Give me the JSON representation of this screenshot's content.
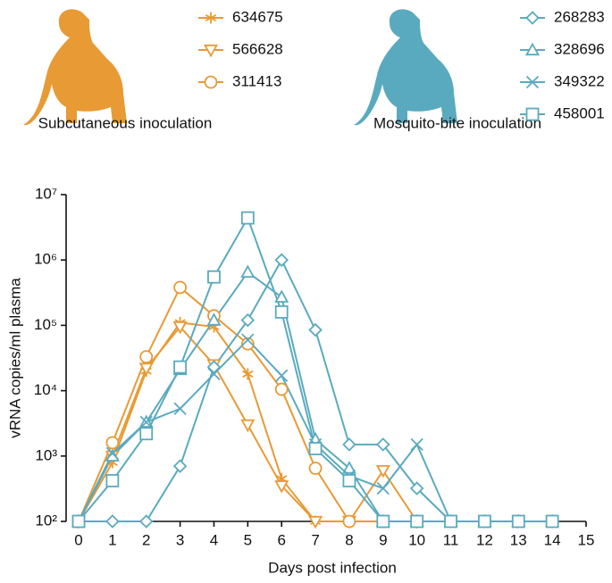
{
  "chart_data": {
    "type": "line",
    "x_label": "Days post infection",
    "y_label": "vRNA copies/ml plasma",
    "annotations": [
      "Subcutaneous inoculation",
      "Mosquito-bite inoculation"
    ],
    "x": [
      0,
      1,
      2,
      3,
      4,
      5,
      6,
      7,
      8,
      9,
      10,
      11,
      12,
      13,
      14
    ],
    "log_y": true,
    "xlim": [
      0,
      15
    ],
    "xticks": [
      0,
      1,
      2,
      3,
      4,
      5,
      6,
      7,
      8,
      9,
      10,
      11,
      12,
      13,
      14,
      15
    ],
    "ylim": [
      100,
      10000000
    ],
    "yticks": [
      {
        "value": 100,
        "label": "10²"
      },
      {
        "value": 1000,
        "label": "10³"
      },
      {
        "value": 10000,
        "label": "10⁴"
      },
      {
        "value": 100000,
        "label": "10⁵"
      },
      {
        "value": 1000000,
        "label": "10⁶"
      },
      {
        "value": 10000000,
        "label": "10⁷"
      }
    ],
    "series": [
      {
        "name": "634675",
        "color": "#e89a35",
        "marker": "asterisk",
        "values": [
          100,
          800,
          20000,
          110000,
          95000,
          18000,
          450,
          100,
          100,
          null,
          null,
          null,
          null,
          null,
          null
        ]
      },
      {
        "name": "566628",
        "color": "#e89a35",
        "marker": "triangle-down",
        "values": [
          100,
          1000,
          22000,
          95000,
          25000,
          3000,
          350,
          100,
          100,
          600,
          100,
          null,
          null,
          null,
          null
        ]
      },
      {
        "name": "311413",
        "color": "#e89a35",
        "marker": "circle",
        "values": [
          100,
          1600,
          33000,
          380000,
          140000,
          52000,
          10500,
          650,
          100,
          100,
          100,
          null,
          null,
          null,
          null
        ]
      },
      {
        "name": "268283",
        "color": "#5aaabf",
        "marker": "diamond",
        "values": [
          100,
          100,
          100,
          700,
          23000,
          120000,
          1000000,
          85000,
          1500,
          1500,
          320,
          100,
          100,
          100,
          100
        ]
      },
      {
        "name": "328696",
        "color": "#5aaabf",
        "marker": "triangle-up",
        "values": [
          100,
          1000,
          3300,
          21000,
          120000,
          650000,
          270000,
          1800,
          650,
          100,
          100,
          100,
          100,
          100,
          100
        ]
      },
      {
        "name": "349322",
        "color": "#5aaabf",
        "marker": "cross",
        "values": [
          100,
          1100,
          3300,
          5300,
          18000,
          60000,
          17000,
          1500,
          500,
          320,
          1500,
          100,
          100,
          100,
          100
        ]
      },
      {
        "name": "458001",
        "color": "#5aaabf",
        "marker": "square",
        "values": [
          100,
          420,
          2200,
          23000,
          550000,
          4400000,
          160000,
          1300,
          420,
          100,
          100,
          100,
          100,
          100,
          100
        ]
      }
    ]
  }
}
